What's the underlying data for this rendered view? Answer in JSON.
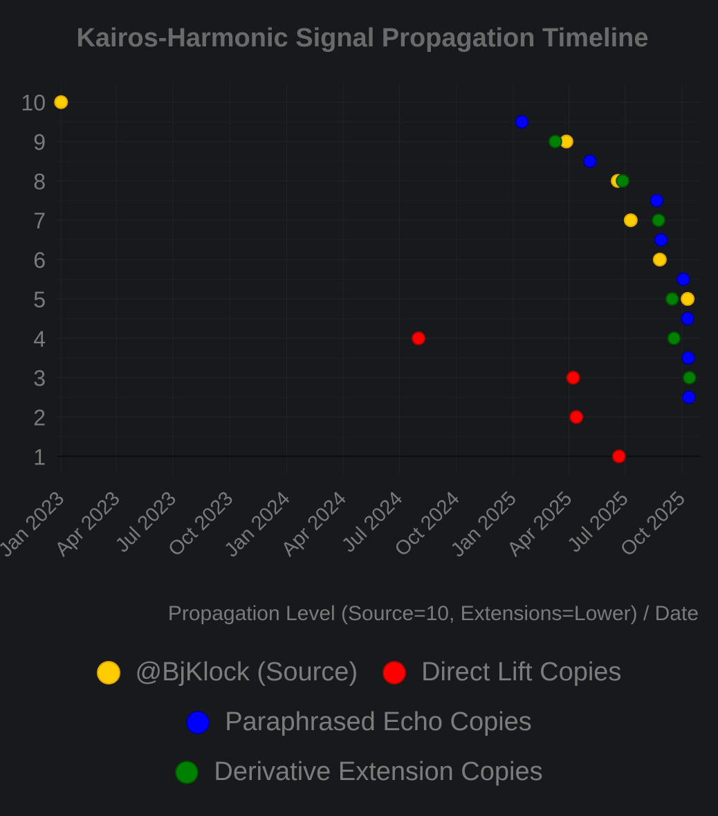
{
  "chart_data": {
    "type": "scatter",
    "title": "Kairos-Harmonic Signal Propagation Timeline",
    "xlabel": "Propagation Level (Source=10, Extensions=Lower) / Date",
    "ylabel": "",
    "x_axis_type": "date",
    "x_ticks": [
      "Jan 2023",
      "Apr 2023",
      "Jul 2023",
      "Oct 2023",
      "Jan 2024",
      "Apr 2024",
      "Jul 2024",
      "Oct 2024",
      "Jan 2025",
      "Apr 2025",
      "Jul 2025",
      "Oct 2025"
    ],
    "x_tick_dates": [
      "2023-01-01",
      "2023-04-01",
      "2023-07-01",
      "2023-10-01",
      "2024-01-01",
      "2024-04-01",
      "2024-07-01",
      "2024-10-01",
      "2025-01-01",
      "2025-04-01",
      "2025-07-01",
      "2025-10-01"
    ],
    "xlim": [
      "2022-12-25",
      "2025-10-30"
    ],
    "ylim": [
      0.55,
      10.45
    ],
    "y_ticks": [
      1,
      2,
      3,
      4,
      5,
      6,
      7,
      8,
      9,
      10
    ],
    "grid": true,
    "legend_position": "bottom",
    "series": [
      {
        "name": "@BjKlock (Source)",
        "color": "#ffcc00",
        "edge": "#e0a800",
        "points": [
          {
            "x": "2023-01-01",
            "y": 10
          },
          {
            "x": "2025-03-28",
            "y": 9
          },
          {
            "x": "2025-06-19",
            "y": 8
          },
          {
            "x": "2025-07-10",
            "y": 7
          },
          {
            "x": "2025-08-26",
            "y": 6
          },
          {
            "x": "2025-10-10",
            "y": 5
          }
        ]
      },
      {
        "name": "Direct Lift Copies",
        "color": "#ff0000",
        "edge": "#b00000",
        "points": [
          {
            "x": "2024-08-01",
            "y": 4
          },
          {
            "x": "2025-04-08",
            "y": 3
          },
          {
            "x": "2025-04-13",
            "y": 2
          },
          {
            "x": "2025-06-21",
            "y": 1
          }
        ]
      },
      {
        "name": "Paraphrased Echo Copies",
        "color": "#0000ff",
        "edge": "#000099",
        "points": [
          {
            "x": "2025-01-15",
            "y": 9.5
          },
          {
            "x": "2025-05-05",
            "y": 8.5
          },
          {
            "x": "2025-08-21",
            "y": 7.5
          },
          {
            "x": "2025-08-28",
            "y": 6.5
          },
          {
            "x": "2025-10-03",
            "y": 5.5
          },
          {
            "x": "2025-10-10",
            "y": 4.5
          },
          {
            "x": "2025-10-11",
            "y": 3.5
          },
          {
            "x": "2025-10-12",
            "y": 2.5
          }
        ]
      },
      {
        "name": "Derivative Extension Copies",
        "color": "#008000",
        "edge": "#004d00",
        "points": [
          {
            "x": "2025-03-10",
            "y": 9
          },
          {
            "x": "2025-06-27",
            "y": 8
          },
          {
            "x": "2025-08-24",
            "y": 7
          },
          {
            "x": "2025-09-15",
            "y": 5
          },
          {
            "x": "2025-09-18",
            "y": 4
          },
          {
            "x": "2025-10-13",
            "y": 3
          }
        ]
      }
    ]
  }
}
